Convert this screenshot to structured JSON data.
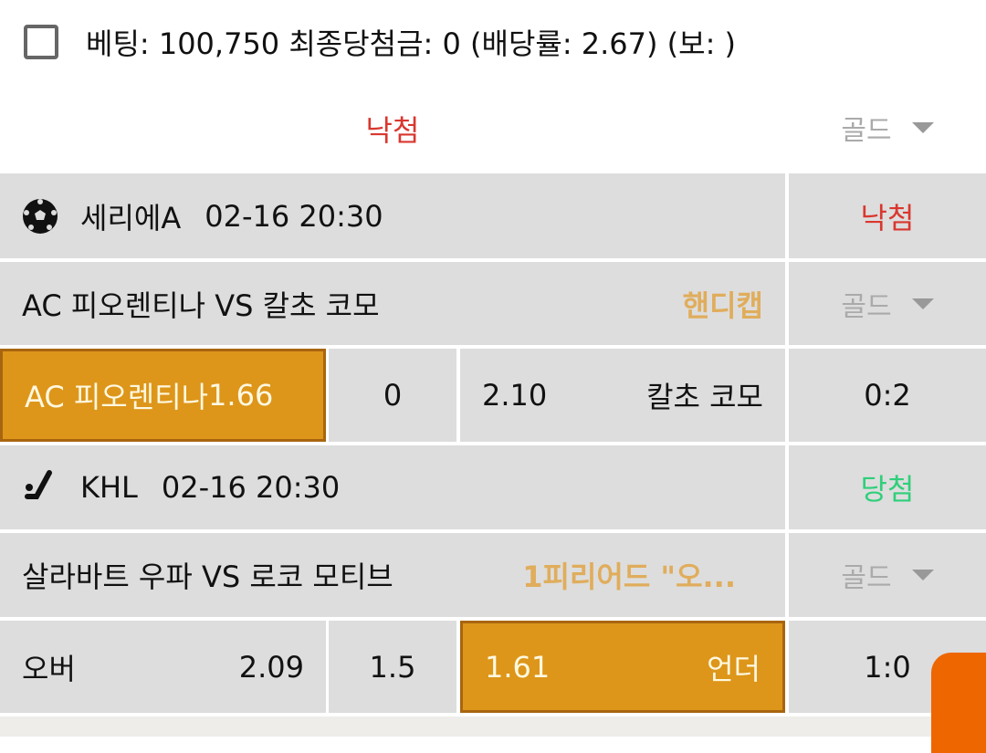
{
  "summary": {
    "text": "베팅: 100,750 최종당첨금: 0 (배당률: 2.67) (보: )",
    "checked": false
  },
  "overall_status": "낙첨",
  "overall_dropdown": "골드",
  "colors": {
    "selected": "#dd961a",
    "lose": "#d9372f",
    "win": "#2fcf7a",
    "market": "#e0ad5c",
    "cell_bg": "#dddddd",
    "fab": "#ee6600"
  },
  "bets": [
    {
      "sport_icon": "soccer-ball-icon",
      "league": "세리에A",
      "time": "02-16 20:30",
      "status": "낙첨",
      "match": "AC 피오렌티나 VS 칼초 코모",
      "market": "핸디캡",
      "dropdown": "골드",
      "home_label": "AC 피오렌티나",
      "home_odds": "1.66",
      "line": "0",
      "away_odds": "2.10",
      "away_label": "칼초 코모",
      "score": "0:2"
    },
    {
      "sport_icon": "hockey-stick-icon",
      "league": "KHL",
      "time": "02-16 20:30",
      "status": "당첨",
      "match": "살라바트 우파 VS 로코 모티브",
      "market": "1피리어드 \"오...",
      "dropdown": "골드",
      "home_label": "오버",
      "home_odds": "2.09",
      "line": "1.5",
      "away_odds": "1.61",
      "away_label": "언더",
      "score": "1:0"
    }
  ]
}
